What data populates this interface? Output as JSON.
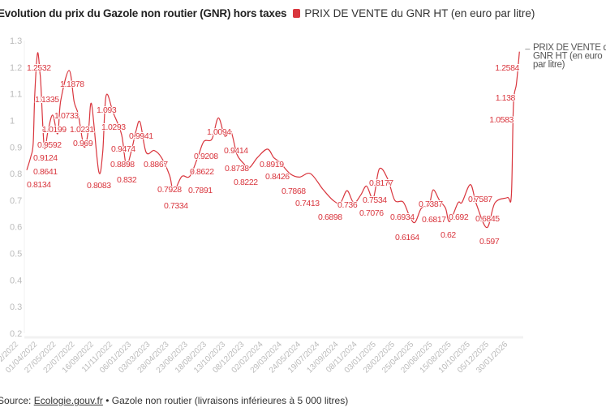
{
  "header": {
    "title": "Evolution du prix du Gazole non routier (GNR) hors taxes"
  },
  "source": {
    "prefix": "Source: ",
    "link": "Ecologie.gouv.fr",
    "suffix": " • Gazole non routier (livraisons inférieures à 5 000 litres)"
  },
  "chart_data": {
    "type": "line",
    "title": "Evolution du prix du Gazole non routier (GNR) hors taxes",
    "xlabel": "",
    "ylabel": "",
    "ylim": [
      0.2,
      1.3
    ],
    "yticks": [
      "1.3",
      "1.2",
      "1.1",
      "1",
      "0.9",
      "0.8",
      "0.7",
      "0.6",
      "0.5",
      "0.4",
      "0.3",
      "0.2"
    ],
    "xticks": [
      "04/02/2022",
      "01/04/2022",
      "27/05/2022",
      "22/07/2022",
      "16/09/2022",
      "11/11/2022",
      "06/01/2023",
      "03/03/2023",
      "28/04/2023",
      "23/06/2023",
      "18/08/2023",
      "13/10/2023",
      "08/12/2023",
      "02/02/2024",
      "29/03/2024",
      "24/05/2024",
      "19/07/2024",
      "13/09/2024",
      "08/11/2024",
      "03/01/2025",
      "28/02/2025",
      "25/04/2025",
      "20/06/2025",
      "15/08/2025",
      "10/10/2025",
      "05/12/2025",
      "30/01/2026"
    ],
    "grid": false,
    "legend": "top",
    "color": "#d9363e",
    "series": [
      {
        "name": "PRIX DE VENTE du GNR HT (en euro par litre)",
        "end_label": [
          "PRIX DE VENTE du",
          "GNR HT (en euro",
          "par litre)"
        ],
        "points": [
          {
            "date": "2022-02-04",
            "value": 0.8134,
            "label": "0.8134"
          },
          {
            "date": "2022-02-16",
            "value": 0.8641,
            "label": "0.8641"
          },
          {
            "date": "2022-02-23",
            "value": 0.9124,
            "label": "0.9124"
          },
          {
            "date": "2022-02-28",
            "value": 1.1
          },
          {
            "date": "2022-03-08",
            "value": 1.2532,
            "label": "1.2532"
          },
          {
            "date": "2022-03-15",
            "value": 1.18
          },
          {
            "date": "2022-03-18",
            "value": 1.1335,
            "label": "1.1335"
          },
          {
            "date": "2022-03-28",
            "value": 0.9
          },
          {
            "date": "2022-04-08",
            "value": 0.9592,
            "label": "0.9592"
          },
          {
            "date": "2022-04-22",
            "value": 1.0199,
            "label": "1.0199"
          },
          {
            "date": "2022-05-07",
            "value": 0.95
          },
          {
            "date": "2022-05-16",
            "value": 1.0733,
            "label": "1.0733"
          },
          {
            "date": "2022-06-10",
            "value": 1.1878,
            "label": "1.1878"
          },
          {
            "date": "2022-06-25",
            "value": 1.07
          },
          {
            "date": "2022-07-07",
            "value": 1.0231,
            "label": "1.0231"
          },
          {
            "date": "2022-07-25",
            "value": 0.9
          },
          {
            "date": "2022-08-07",
            "value": 0.969,
            "label": "0.969"
          },
          {
            "date": "2022-08-16",
            "value": 1.06
          },
          {
            "date": "2022-09-06",
            "value": 0.8083,
            "label": "0.8083"
          },
          {
            "date": "2022-09-18",
            "value": 0.88
          },
          {
            "date": "2022-09-28",
            "value": 1.093,
            "label": "1.093"
          },
          {
            "date": "2022-10-19",
            "value": 1.0293,
            "label": "1.0293"
          },
          {
            "date": "2022-11-13",
            "value": 0.9474,
            "label": "0.9474"
          },
          {
            "date": "2022-11-27",
            "value": 0.832,
            "label": "0.832"
          },
          {
            "date": "2022-12-13",
            "value": 0.8898,
            "label": "0.8898"
          },
          {
            "date": "2022-12-26",
            "value": 0.96
          },
          {
            "date": "2023-01-07",
            "value": 0.9941,
            "label": "0.9941"
          },
          {
            "date": "2023-01-25",
            "value": 0.88
          },
          {
            "date": "2023-02-18",
            "value": 0.8867,
            "label": "0.8867"
          },
          {
            "date": "2023-03-12",
            "value": 0.86
          },
          {
            "date": "2023-04-05",
            "value": 0.7928,
            "label": "0.7928"
          },
          {
            "date": "2023-04-17",
            "value": 0.7334,
            "label": "0.7334"
          },
          {
            "date": "2023-05-11",
            "value": 0.7891,
            "label": "0.7891"
          },
          {
            "date": "2023-06-04",
            "value": 0.79
          },
          {
            "date": "2023-06-28",
            "value": 0.8622,
            "label": "0.8622"
          },
          {
            "date": "2023-07-16",
            "value": 0.9208,
            "label": "0.9208"
          },
          {
            "date": "2023-08-09",
            "value": 0.93
          },
          {
            "date": "2023-08-28",
            "value": 1.0094,
            "label": "1.0094"
          },
          {
            "date": "2023-09-16",
            "value": 0.9414,
            "label": "0.9414"
          },
          {
            "date": "2023-10-04",
            "value": 0.96
          },
          {
            "date": "2023-10-22",
            "value": 0.8738,
            "label": "0.8738"
          },
          {
            "date": "2023-11-10",
            "value": 0.84
          },
          {
            "date": "2023-11-28",
            "value": 0.8222,
            "label": "0.8222"
          },
          {
            "date": "2023-12-22",
            "value": 0.86
          },
          {
            "date": "2024-01-21",
            "value": 0.8919,
            "label": "0.8919"
          },
          {
            "date": "2024-02-09",
            "value": 0.86
          },
          {
            "date": "2024-02-27",
            "value": 0.8426,
            "label": "0.8426"
          },
          {
            "date": "2024-03-28",
            "value": 0.8
          },
          {
            "date": "2024-04-25",
            "value": 0.7868,
            "label": "0.7868"
          },
          {
            "date": "2024-05-28",
            "value": 0.8
          },
          {
            "date": "2024-07-04",
            "value": 0.7413,
            "label": "0.7413"
          },
          {
            "date": "2024-08-03",
            "value": 0.7
          },
          {
            "date": "2024-08-25",
            "value": 0.6898,
            "label": "0.6898"
          },
          {
            "date": "2024-09-14",
            "value": 0.736,
            "label": "0.736"
          },
          {
            "date": "2024-10-04",
            "value": 0.69
          },
          {
            "date": "2024-10-25",
            "value": 0.72
          },
          {
            "date": "2024-11-11",
            "value": 0.7534,
            "label": "0.7534"
          },
          {
            "date": "2024-12-01",
            "value": 0.7076,
            "label": "0.7076"
          },
          {
            "date": "2024-12-19",
            "value": 0.8177,
            "label": "0.8177"
          },
          {
            "date": "2025-01-13",
            "value": 0.78
          },
          {
            "date": "2025-02-03",
            "value": 0.7
          },
          {
            "date": "2025-02-28",
            "value": 0.6934,
            "label": "0.6934"
          },
          {
            "date": "2025-03-19",
            "value": 0.64
          },
          {
            "date": "2025-04-04",
            "value": 0.6164,
            "label": "0.6164"
          },
          {
            "date": "2025-04-23",
            "value": 0.67
          },
          {
            "date": "2025-05-16",
            "value": 0.6817,
            "label": "0.6817"
          },
          {
            "date": "2025-05-28",
            "value": 0.7387,
            "label": "0.7387"
          },
          {
            "date": "2025-06-16",
            "value": 0.7
          },
          {
            "date": "2025-07-04",
            "value": 0.67
          },
          {
            "date": "2025-07-16",
            "value": 0.62,
            "label": "0.62"
          },
          {
            "date": "2025-08-10",
            "value": 0.69
          },
          {
            "date": "2025-08-22",
            "value": 0.692,
            "label": "0.692"
          },
          {
            "date": "2025-09-16",
            "value": 0.7587,
            "label": "0.7587"
          },
          {
            "date": "2025-10-04",
            "value": 0.6845,
            "label": "0.6845"
          },
          {
            "date": "2025-11-04",
            "value": 0.597,
            "label": "0.597"
          },
          {
            "date": "2025-11-28",
            "value": 0.69
          },
          {
            "date": "2026-01-04",
            "value": 0.71
          },
          {
            "date": "2026-01-16",
            "value": 0.72
          },
          {
            "date": "2026-01-22",
            "value": 1.0583,
            "label": "1.0583"
          },
          {
            "date": "2026-01-31",
            "value": 1.138,
            "label": "1.138"
          },
          {
            "date": "2026-02-09",
            "value": 1.2584,
            "label": "1.2584"
          }
        ]
      }
    ]
  }
}
